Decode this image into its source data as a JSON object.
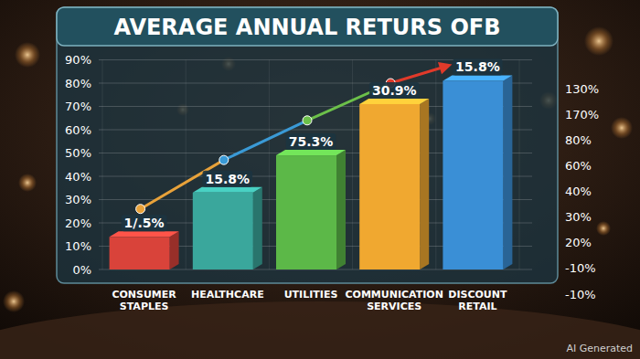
{
  "chart_data": {
    "type": "bar",
    "title": "AVERAGE ANNUAL RETURS OFB",
    "categories": [
      "CONSUMER STAPLES",
      "HEALTHCARE",
      "UTILITIES",
      "COMMUNICATION SERVICES",
      "DISCOUNT RETAIL"
    ],
    "series": [
      {
        "type": "bar",
        "colors": [
          "#d9433a",
          "#3aa79c",
          "#5cb848",
          "#f0a830",
          "#3a8fd6"
        ],
        "values": [
          14,
          33,
          49,
          71,
          81
        ]
      },
      {
        "type": "line",
        "marker": "circle",
        "colors": [
          "#e8a23a",
          "#3a9ad6",
          "#6cc04a",
          "#e03a2a",
          "#e03a2a"
        ],
        "values": [
          26,
          47,
          64,
          80,
          88
        ]
      }
    ],
    "ylim": [
      0,
      90
    ],
    "yticks": [
      {
        "value": 0,
        "label": "0%"
      },
      {
        "value": 10,
        "label": "10%"
      },
      {
        "value": 20,
        "label": "20%"
      },
      {
        "value": 30,
        "label": "30%"
      },
      {
        "value": 40,
        "label": "40%"
      },
      {
        "value": 50,
        "label": "50%"
      },
      {
        "value": 60,
        "label": "60%"
      },
      {
        "value": 70,
        "label": "70%"
      },
      {
        "value": 80,
        "label": "80%"
      },
      {
        "value": 90,
        "label": "90%"
      }
    ],
    "grid": true,
    "data_labels": false,
    "annotations": [
      "1/.5%",
      "15.8%",
      "75.3%",
      "30.9%",
      "15.8%"
    ],
    "right_labels": [
      "130%",
      "170%",
      "80%",
      "60%",
      "40%",
      "30%",
      "20%",
      "-10%",
      "-10%"
    ],
    "watermark": "AI Generated"
  }
}
